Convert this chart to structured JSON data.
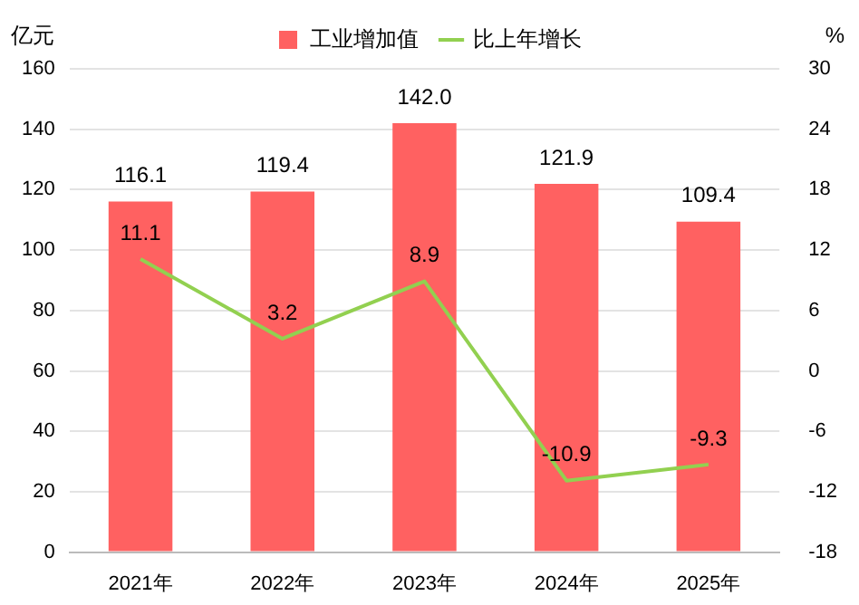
{
  "chart_data": {
    "type": "bar",
    "categories": [
      "2021年",
      "2022年",
      "2023年",
      "2024年",
      "2025年"
    ],
    "series": [
      {
        "name": "工业增加值",
        "color": "#ff6161",
        "values": [
          116.1,
          119.4,
          142.0,
          121.9,
          109.4
        ],
        "value_labels": [
          "116.1",
          "119.4",
          "142.0",
          "121.9",
          "109.4"
        ]
      },
      {
        "name": "比上年增长",
        "type": "line",
        "axis": "y2",
        "color": "#92d050",
        "values": [
          11.1,
          3.2,
          8.9,
          -10.9,
          -9.3
        ],
        "value_labels": [
          "11.1",
          "3.2",
          "8.9",
          "-10.9",
          "-9.3"
        ]
      }
    ],
    "ylabel": "亿元",
    "y2label": "%",
    "ylim": [
      0,
      160
    ],
    "yticks": [
      0,
      20,
      40,
      60,
      80,
      100,
      120,
      140,
      160
    ],
    "y2lim": [
      -18,
      30
    ],
    "y2ticks": [
      -18,
      -12,
      -6,
      0,
      6,
      12,
      18,
      24,
      30
    ],
    "grid": "y",
    "legend": "top",
    "marker": "none",
    "line_style": "solid"
  }
}
